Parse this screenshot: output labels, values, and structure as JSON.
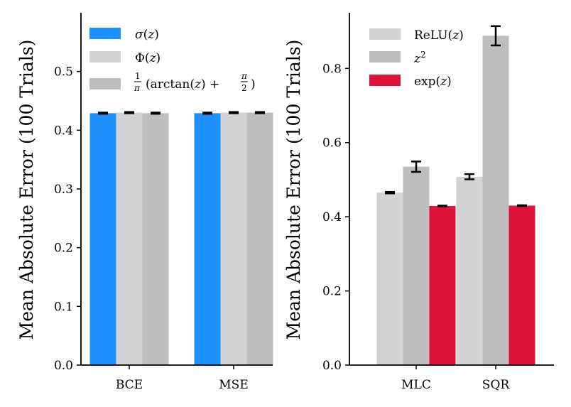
{
  "chart_data": [
    {
      "type": "bar",
      "title": "",
      "xlabel": "",
      "ylabel": "Mean Absolute Error (100 Trials)",
      "ylim": [
        0,
        0.6
      ],
      "yticks": [
        "0.0",
        "0.1",
        "0.2",
        "0.3",
        "0.4",
        "0.5"
      ],
      "categories": [
        "BCE",
        "MSE"
      ],
      "series": [
        {
          "name": "σ(z)",
          "color": "#1e90ff",
          "values": [
            0.429,
            0.429
          ],
          "errors": [
            0.001,
            0.001
          ]
        },
        {
          "name": "Φ(z)",
          "color": "#d3d3d3",
          "values": [
            0.43,
            0.43
          ],
          "errors": [
            0.001,
            0.001
          ]
        },
        {
          "name": "1/π (arctan(z) + π/2)",
          "color": "#bebebe",
          "values": [
            0.429,
            0.43
          ],
          "errors": [
            0.001,
            0.001
          ]
        }
      ],
      "legend": "top-left"
    },
    {
      "type": "bar",
      "title": "",
      "xlabel": "",
      "ylabel": "Mean Absolute Error (100 Trials)",
      "ylim": [
        0,
        0.95
      ],
      "yticks": [
        "0.0",
        "0.2",
        "0.4",
        "0.6",
        "0.8"
      ],
      "categories": [
        "MLC",
        "SQR"
      ],
      "series": [
        {
          "name": "ReLU(z)",
          "color": "#d3d3d3",
          "values": [
            0.465,
            0.508
          ],
          "errors": [
            0.002,
            0.007
          ]
        },
        {
          "name": "z²",
          "color": "#bebebe",
          "values": [
            0.535,
            0.888
          ],
          "errors": [
            0.014,
            0.026
          ]
        },
        {
          "name": "exp(z)",
          "color": "#dc143c",
          "values": [
            0.429,
            0.43
          ],
          "errors": [
            0.001,
            0.001
          ]
        }
      ],
      "legend": "top-left"
    }
  ]
}
